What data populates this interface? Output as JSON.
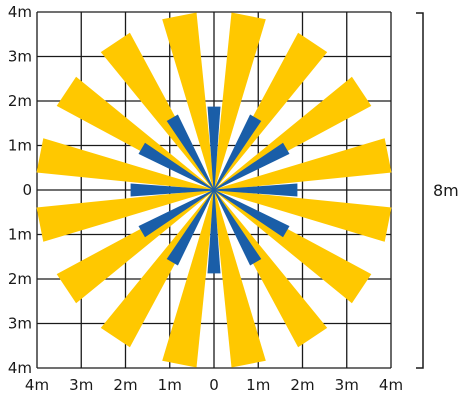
{
  "diagram": {
    "y_tick_labels": [
      "4m",
      "3m",
      "2m",
      "1m",
      "0",
      "1m",
      "2m",
      "3m",
      "4m"
    ],
    "x_tick_labels": [
      "4m",
      "3m",
      "2m",
      "1m",
      "0",
      "1m",
      "2m",
      "3m",
      "4m"
    ],
    "dimension_label": "8m",
    "colors": {
      "grid": "#1a1a1a",
      "long_zone": "#ffc800",
      "short_zone": "#1a5ea8"
    },
    "long_zone_angles_deg": [
      -78.75,
      -56.25,
      -33.75,
      -11.25,
      11.25,
      33.75,
      56.25,
      78.75,
      101.25,
      123.75,
      146.25,
      168.75,
      191.25,
      213.75,
      236.25,
      258.75
    ],
    "short_zone_angles_deg": [
      -90,
      -60,
      -30,
      0,
      30,
      60,
      90,
      120,
      150,
      180,
      210,
      240
    ],
    "long_zone_range_m": 4,
    "short_zone_range_m": 2
  }
}
